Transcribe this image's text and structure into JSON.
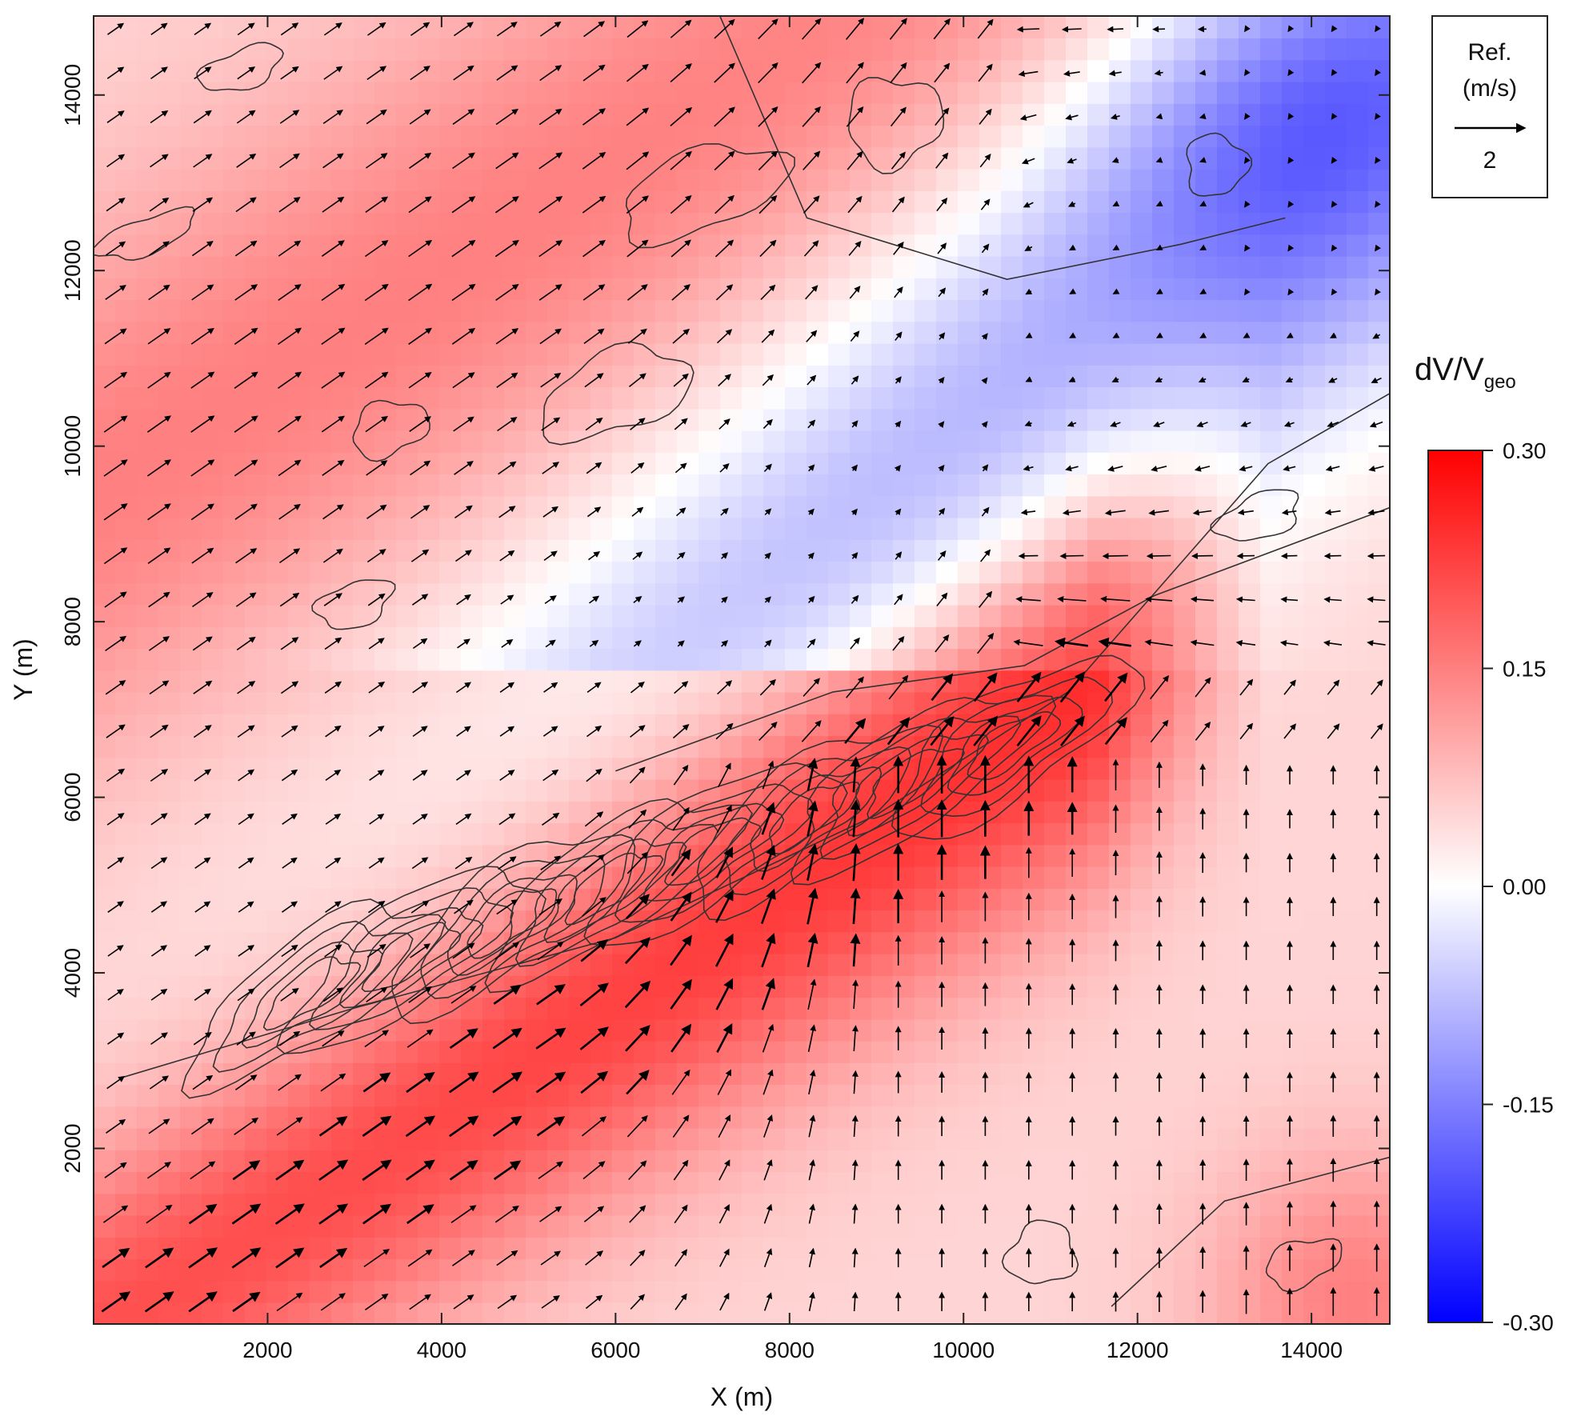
{
  "chart_data": {
    "type": "heatmap",
    "subtype": "vector-field-with-contours",
    "title": "",
    "xlabel": "X (m)",
    "ylabel": "Y (m)",
    "xlim": [
      0,
      14900
    ],
    "ylim": [
      0,
      14900
    ],
    "xticks": [
      2000,
      4000,
      6000,
      8000,
      10000,
      12000,
      14000
    ],
    "yticks": [
      2000,
      4000,
      6000,
      8000,
      10000,
      12000,
      14000
    ],
    "xtick_labels": [
      "2000",
      "4000",
      "6000",
      "8000",
      "10000",
      "12000",
      "14000"
    ],
    "ytick_labels": [
      "2000",
      "4000",
      "6000",
      "8000",
      "10000",
      "12000",
      "14000"
    ],
    "colorbar": {
      "label_main": "dV/V",
      "label_sub": "geo",
      "range": [
        -0.3,
        0.3
      ],
      "ticks": [
        "0.30",
        "0.15",
        "0.00",
        "-0.15",
        "-0.30"
      ],
      "colormap": [
        "#0000ff",
        "#ffffff",
        "#ff0000"
      ]
    },
    "reference_vector": {
      "label_line1": "Ref.",
      "label_line2": "(m/s)",
      "value": "2",
      "speed": 2
    },
    "field_pattern": {
      "description_of_bands": [
        {
          "feature": "strong speed-up band",
          "from": [
            1000,
            500
          ],
          "to": [
            9500,
            6200
          ],
          "dv": 0.22
        },
        {
          "feature": "upper-left moderate speed-up",
          "from": [
            500,
            13000
          ],
          "to": [
            8500,
            14900
          ],
          "dv": 0.1
        },
        {
          "feature": "lee-side deceleration",
          "from": [
            11000,
            8000
          ],
          "to": [
            14900,
            14900
          ],
          "dv": -0.15
        }
      ]
    },
    "grid": false,
    "legend": "none"
  }
}
